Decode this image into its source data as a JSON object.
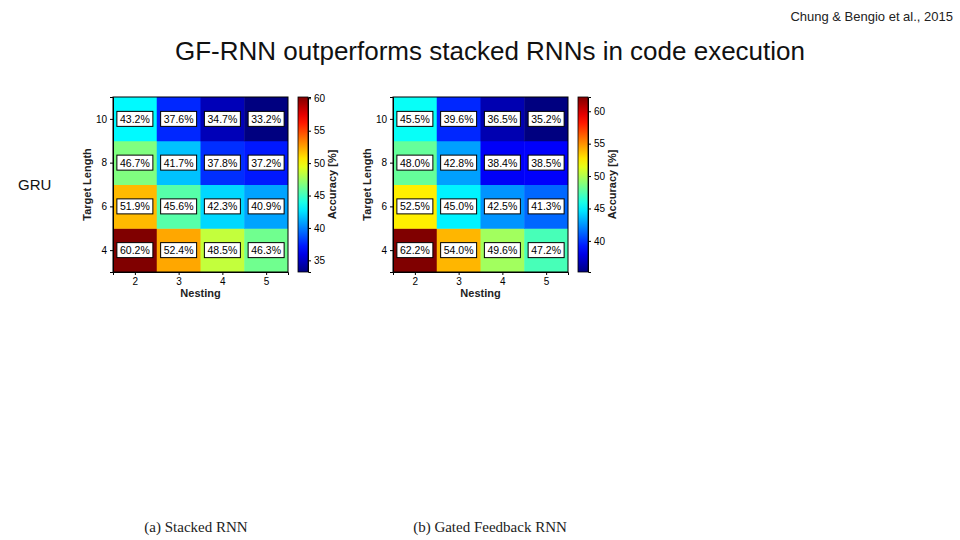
{
  "page": {
    "title": "GF-RNN outperforms stacked RNNs in code execution",
    "citation": "Chung & Bengio et al., 2015",
    "row_label": "GRU"
  },
  "chart_data": [
    {
      "type": "heatmap",
      "title": "(a) Stacked RNN",
      "x_label": "Nesting",
      "y_label": "Target Length",
      "x": [
        2,
        3,
        4,
        5
      ],
      "y": [
        4,
        6,
        8,
        10
      ],
      "xlim": [
        1.5,
        5.5
      ],
      "xticks": [
        2,
        3,
        4,
        5
      ],
      "ylim": [
        3,
        11
      ],
      "yticks": [
        4,
        6,
        8,
        10
      ],
      "values": [
        [
          60.2,
          52.4,
          48.5,
          46.3
        ],
        [
          51.9,
          45.6,
          42.3,
          40.9
        ],
        [
          46.7,
          41.7,
          37.8,
          37.2
        ],
        [
          43.2,
          37.6,
          34.7,
          33.2
        ]
      ],
      "value_labels": [
        [
          "60.2%",
          "52.4%",
          "48.5%",
          "46.3%"
        ],
        [
          "51.9%",
          "45.6%",
          "42.3%",
          "40.9%"
        ],
        [
          "46.7%",
          "41.7%",
          "37.8%",
          "37.2%"
        ],
        [
          "43.2%",
          "37.6%",
          "34.7%",
          "33.2%"
        ]
      ],
      "data_labels": true,
      "colorbar": {
        "label": "Accuracy [%]",
        "range": [
          33.2,
          60.2
        ],
        "ticks": [
          35,
          40,
          45,
          50,
          55,
          60
        ]
      }
    },
    {
      "type": "heatmap",
      "title": "(b) Gated Feedback RNN",
      "x_label": "Nesting",
      "y_label": "Target Length",
      "x": [
        2,
        3,
        4,
        5
      ],
      "y": [
        4,
        6,
        8,
        10
      ],
      "xlim": [
        1.5,
        5.5
      ],
      "xticks": [
        2,
        3,
        4,
        5
      ],
      "ylim": [
        3,
        11
      ],
      "yticks": [
        4,
        6,
        8,
        10
      ],
      "values": [
        [
          62.2,
          54.0,
          49.6,
          47.2
        ],
        [
          52.5,
          45.0,
          42.5,
          41.3
        ],
        [
          48.0,
          42.8,
          38.4,
          38.5
        ],
        [
          45.5,
          39.6,
          36.5,
          35.2
        ]
      ],
      "value_labels": [
        [
          "62.2%",
          "54.0%",
          "49.6%",
          "47.2%"
        ],
        [
          "52.5%",
          "45.0%",
          "42.5%",
          "41.3%"
        ],
        [
          "48.0%",
          "42.8%",
          "38.4%",
          "38.5%"
        ],
        [
          "45.5%",
          "39.6%",
          "36.5%",
          "35.2%"
        ]
      ],
      "data_labels": true,
      "colorbar": {
        "label": "Accuracy [%]",
        "range": [
          35.2,
          62.2
        ],
        "ticks": [
          40,
          45,
          50,
          55,
          60
        ]
      }
    }
  ]
}
